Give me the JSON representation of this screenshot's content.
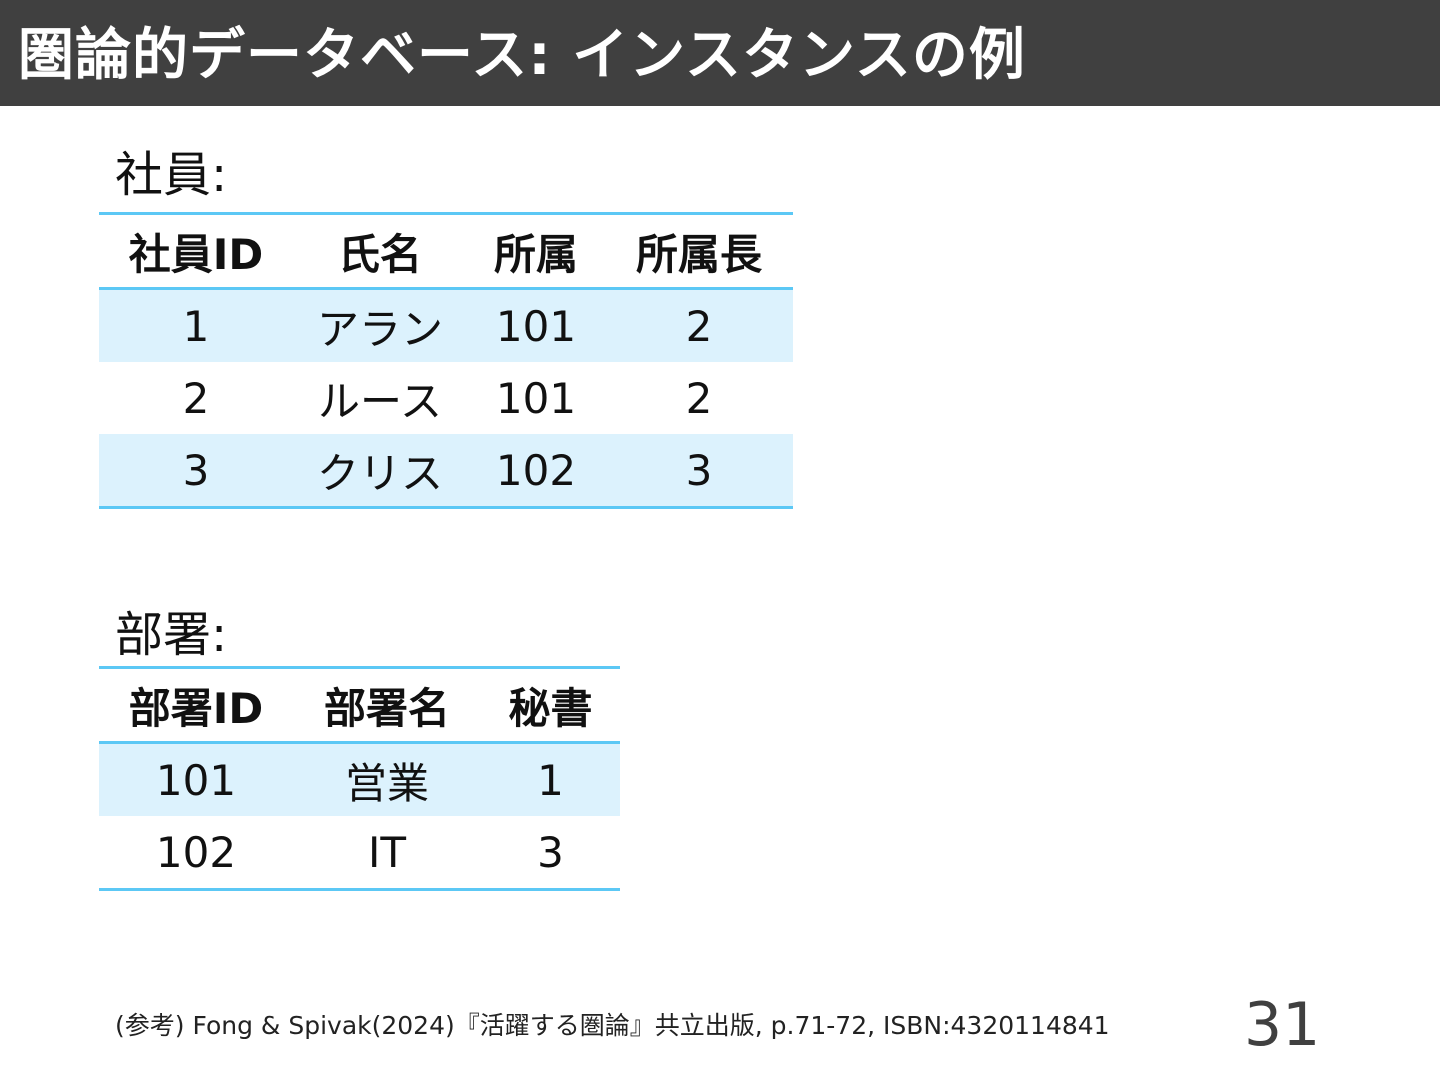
{
  "header": {
    "title": "圏論的データベース: インスタンスの例"
  },
  "employees": {
    "label": "社員:",
    "columns": [
      "社員ID",
      "氏名",
      "所属",
      "所属長"
    ],
    "rows": [
      [
        "1",
        "アラン",
        "101",
        "2"
      ],
      [
        "2",
        "ルース",
        "101",
        "2"
      ],
      [
        "3",
        "クリス",
        "102",
        "3"
      ]
    ]
  },
  "departments": {
    "label": "部署:",
    "columns": [
      "部署ID",
      "部署名",
      "秘書"
    ],
    "rows": [
      [
        "101",
        "営業",
        "1"
      ],
      [
        "102",
        "IT",
        "3"
      ]
    ]
  },
  "footer": {
    "reference": "(参考) Fong & Spivak(2024)『活躍する圏論』共立出版, p.71-72, ISBN:4320114841",
    "page_number": "31"
  },
  "colors": {
    "title_bar": "#404040",
    "table_rule": "#5cc8f5",
    "row_highlight": "#dcf2fd"
  }
}
